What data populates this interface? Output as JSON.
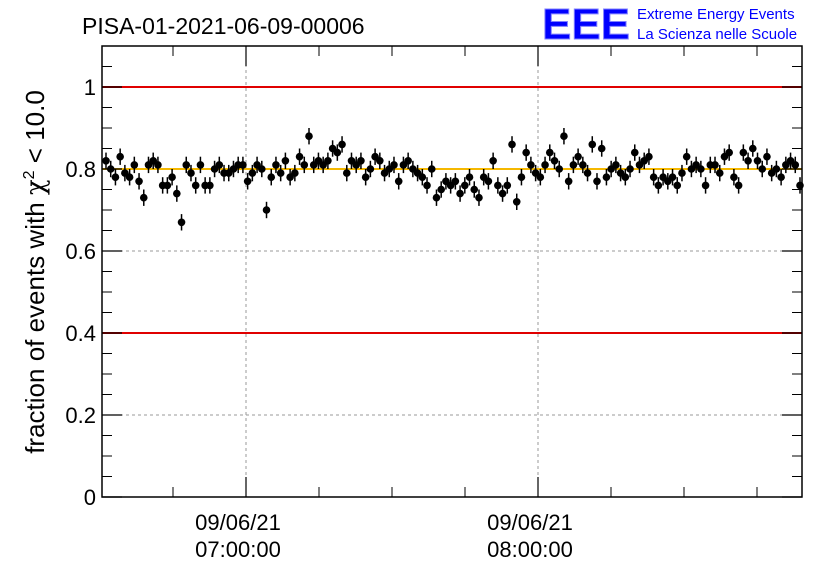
{
  "chart_data": {
    "type": "scatter",
    "title": "PISA-01-2021-06-09-00006",
    "ylabel": "fraction of events with χ² < 10.0",
    "ylabel_parts": {
      "prefix": "fraction of events with ",
      "chi": "χ",
      "sup": "2",
      "suffix": " < 10.0"
    },
    "xlabel": "",
    "ylim": [
      0,
      1.1
    ],
    "yticks": [
      "0",
      "0.2",
      "0.4",
      "0.6",
      "0.8",
      "1"
    ],
    "xticks": [
      {
        "date": "09/06/21",
        "time": "07:00:00"
      },
      {
        "date": "09/06/21",
        "time": "08:00:00"
      }
    ],
    "grid": true,
    "reference_lines": [
      {
        "y": 1.0,
        "color": "#e00000"
      },
      {
        "y": 0.4,
        "color": "#e00000"
      },
      {
        "y": 0.8,
        "color": "#f5b800"
      }
    ],
    "values": [
      0.82,
      0.8,
      0.78,
      0.83,
      0.79,
      0.78,
      0.81,
      0.77,
      0.73,
      0.81,
      0.82,
      0.81,
      0.76,
      0.76,
      0.78,
      0.74,
      0.67,
      0.81,
      0.79,
      0.76,
      0.81,
      0.76,
      0.76,
      0.8,
      0.81,
      0.79,
      0.79,
      0.8,
      0.81,
      0.81,
      0.77,
      0.79,
      0.81,
      0.8,
      0.7,
      0.78,
      0.81,
      0.79,
      0.82,
      0.78,
      0.79,
      0.83,
      0.81,
      0.88,
      0.81,
      0.82,
      0.81,
      0.82,
      0.85,
      0.84,
      0.86,
      0.79,
      0.82,
      0.81,
      0.82,
      0.78,
      0.8,
      0.83,
      0.82,
      0.79,
      0.8,
      0.81,
      0.77,
      0.81,
      0.82,
      0.8,
      0.79,
      0.78,
      0.76,
      0.8,
      0.73,
      0.75,
      0.77,
      0.76,
      0.77,
      0.74,
      0.76,
      0.78,
      0.75,
      0.73,
      0.78,
      0.77,
      0.82,
      0.76,
      0.74,
      0.76,
      0.86,
      0.72,
      0.78,
      0.84,
      0.81,
      0.79,
      0.78,
      0.81,
      0.84,
      0.82,
      0.8,
      0.88,
      0.77,
      0.81,
      0.83,
      0.81,
      0.79,
      0.86,
      0.77,
      0.85,
      0.78,
      0.8,
      0.81,
      0.79,
      0.78,
      0.8,
      0.84,
      0.81,
      0.82,
      0.83,
      0.78,
      0.76,
      0.78,
      0.77,
      0.78,
      0.76,
      0.79,
      0.83,
      0.8,
      0.81,
      0.8,
      0.76,
      0.81,
      0.81,
      0.79,
      0.83,
      0.84,
      0.78,
      0.76,
      0.84,
      0.82,
      0.85,
      0.82,
      0.8,
      0.83,
      0.79,
      0.8,
      0.78,
      0.81,
      0.82,
      0.81,
      0.76
    ],
    "error": 0.02,
    "marker_color": "#000000"
  },
  "logo": {
    "letters": "EEE",
    "line1": "Extreme Energy Events",
    "line2": "La Scienza nelle Scuole",
    "color": "#0000ff"
  }
}
